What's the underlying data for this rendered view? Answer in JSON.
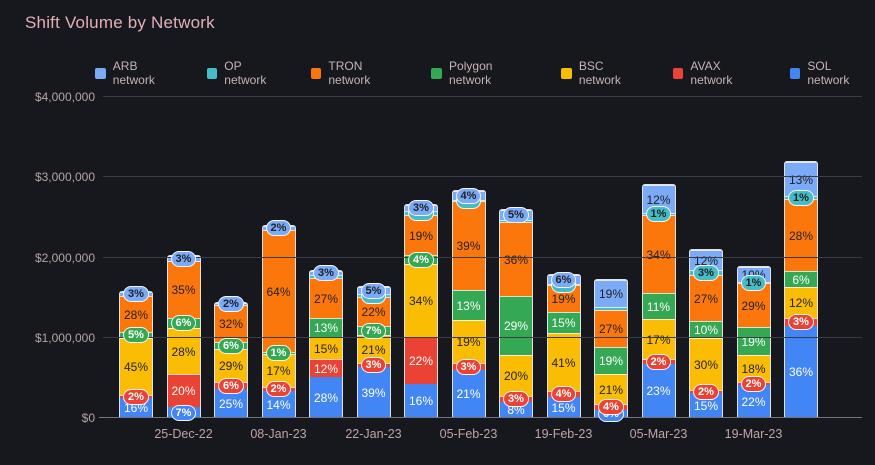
{
  "title": "Shift Volume by Network",
  "colors": {
    "background": "#16181d",
    "title_text": "#e3afb6",
    "axis_text": "#b9a2a6",
    "gridline": "#3a3d43",
    "dark_label": "#1e2023",
    "light_label": "#ffffff"
  },
  "legend": {
    "items": [
      {
        "label": "ARB network",
        "color": "#7BAAF7"
      },
      {
        "label": "OP network",
        "color": "#46BDC6"
      },
      {
        "label": "TRON network",
        "color": "#FB770C"
      },
      {
        "label": "Polygon network",
        "color": "#34A853"
      },
      {
        "label": "BSC network",
        "color": "#FBBC04"
      },
      {
        "label": "AVAX network",
        "color": "#EA4335"
      },
      {
        "label": "SOL network",
        "color": "#4285F4"
      }
    ]
  },
  "chart_data": {
    "type": "bar",
    "stacked": true,
    "title": "Shift Volume by Network",
    "unit": "USD",
    "ylim": [
      0,
      4000000
    ],
    "y_ticks": [
      "$0",
      "$1,000,000",
      "$2,000,000",
      "$3,000,000",
      "$4,000,000"
    ],
    "grid": true,
    "legend_position": "top",
    "stack_order_bottom_to_top": [
      "SOL network",
      "AVAX network",
      "BSC network",
      "Polygon network",
      "TRON network",
      "OP network",
      "ARB network"
    ],
    "series_colors": [
      "#4285F4",
      "#EA4335",
      "#FBBC04",
      "#34A853",
      "#FB770C",
      "#46BDC6",
      "#7BAAF7"
    ],
    "dark_text_series": [
      "BSC network",
      "TRON network",
      "OP network",
      "ARB network"
    ],
    "bars": [
      {
        "x_label": "",
        "total_usd": 1580000,
        "pcts": [
          16,
          2,
          45,
          5,
          28,
          0,
          3
        ],
        "labels": [
          "16%",
          "2%",
          "45%",
          "5%",
          "28%",
          "",
          "3%"
        ]
      },
      {
        "x_label": "25-Dec-22",
        "total_usd": 2030000,
        "pcts": [
          7,
          20,
          28,
          6,
          35,
          0,
          3
        ],
        "labels": [
          "7%",
          "20%",
          "28%",
          "6%",
          "35%",
          "",
          "3%"
        ]
      },
      {
        "x_label": "",
        "total_usd": 1450000,
        "pcts": [
          25,
          6,
          29,
          6,
          32,
          0,
          2
        ],
        "labels": [
          "25%",
          "6%",
          "29%",
          "6%",
          "32%",
          "",
          "2%"
        ]
      },
      {
        "x_label": "08-Jan-23",
        "total_usd": 2400000,
        "pcts": [
          14,
          2,
          17,
          1,
          64,
          0,
          2
        ],
        "labels": [
          "14%",
          "2%",
          "17%",
          "1%",
          "64%",
          "",
          "2%"
        ]
      },
      {
        "x_label": "",
        "total_usd": 1850000,
        "pcts": [
          28,
          12,
          15,
          13,
          27,
          2,
          3
        ],
        "labels": [
          "28%",
          "12%",
          "15%",
          "13%",
          "27%",
          "",
          "3%"
        ]
      },
      {
        "x_label": "22-Jan-23",
        "total_usd": 1640000,
        "pcts": [
          39,
          3,
          21,
          7,
          22,
          2,
          5
        ],
        "labels": [
          "39%",
          "3%",
          "21%",
          "7%",
          "22%",
          "2%",
          "5%"
        ]
      },
      {
        "x_label": "",
        "total_usd": 2670000,
        "pcts": [
          16,
          22,
          34,
          4,
          19,
          2,
          3
        ],
        "labels": [
          "16%",
          "22%",
          "34%",
          "4%",
          "19%",
          "2%",
          "3%"
        ]
      },
      {
        "x_label": "05-Feb-23",
        "total_usd": 2840000,
        "pcts": [
          21,
          3,
          19,
          13,
          39,
          0.5,
          4
        ],
        "labels": [
          "21%",
          "3%",
          "19%",
          "13%",
          "39%",
          "0%",
          "4%"
        ]
      },
      {
        "x_label": "",
        "total_usd": 2610000,
        "pcts": [
          8,
          3,
          20,
          29,
          36,
          1,
          5
        ],
        "labels": [
          "8%",
          "3%",
          "20%",
          "29%",
          "36%",
          "",
          "5%"
        ]
      },
      {
        "x_label": "19-Feb-23",
        "total_usd": 1790000,
        "pcts": [
          15,
          4,
          41,
          15,
          19,
          0.5,
          6
        ],
        "labels": [
          "15%",
          "4%",
          "41%",
          "15%",
          "19%",
          "0%",
          "6%"
        ]
      },
      {
        "x_label": "",
        "total_usd": 1730000,
        "pcts": [
          6,
          4,
          21,
          19,
          27,
          2,
          19
        ],
        "labels": [
          "6%",
          "4%",
          "21%",
          "19%",
          "27%",
          "",
          "19%"
        ]
      },
      {
        "x_label": "05-Mar-23",
        "total_usd": 2910000,
        "pcts": [
          23,
          2,
          17,
          11,
          34,
          1,
          12
        ],
        "labels": [
          "23%",
          "2%",
          "17%",
          "11%",
          "34%",
          "1%",
          "12%"
        ]
      },
      {
        "x_label": "",
        "total_usd": 2100000,
        "pcts": [
          15,
          2,
          30,
          10,
          27,
          3,
          12
        ],
        "labels": [
          "15%",
          "2%",
          "30%",
          "10%",
          "27%",
          "3%",
          "12%"
        ]
      },
      {
        "x_label": "19-Mar-23",
        "total_usd": 1900000,
        "pcts": [
          22,
          2,
          18,
          19,
          29,
          1,
          10
        ],
        "labels": [
          "22%",
          "2%",
          "18%",
          "19%",
          "29%",
          "1%",
          "10%"
        ]
      },
      {
        "x_label": "",
        "total_usd": 3200000,
        "pcts": [
          36,
          3,
          12,
          6,
          28,
          1,
          13
        ],
        "labels": [
          "36%",
          "3%",
          "12%",
          "6%",
          "28%",
          "1%",
          "13%"
        ]
      }
    ]
  }
}
